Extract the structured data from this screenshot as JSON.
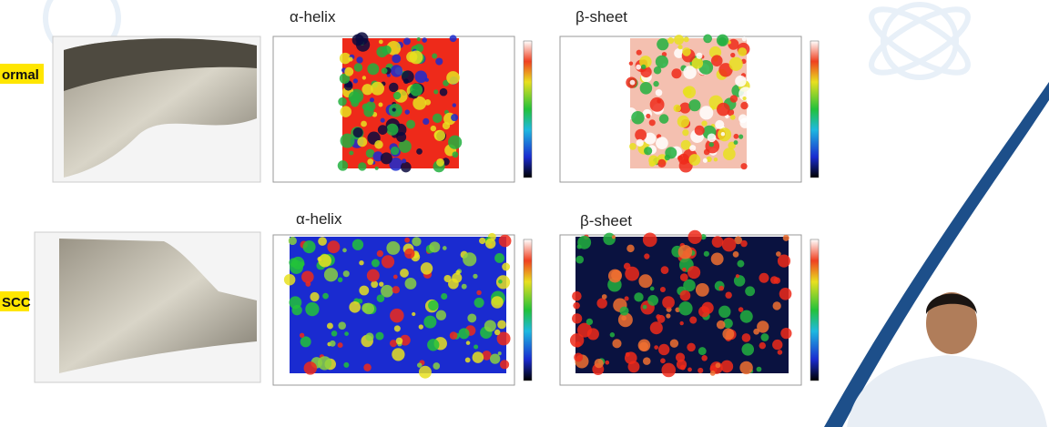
{
  "slide": {
    "rows": [
      {
        "label": "ormal",
        "panels": [
          {
            "title": "α-helix"
          },
          {
            "title": "β-sheet"
          }
        ]
      },
      {
        "label": "SCC",
        "panels": [
          {
            "title": "α-helix"
          },
          {
            "title": "β-sheet"
          }
        ]
      }
    ]
  }
}
